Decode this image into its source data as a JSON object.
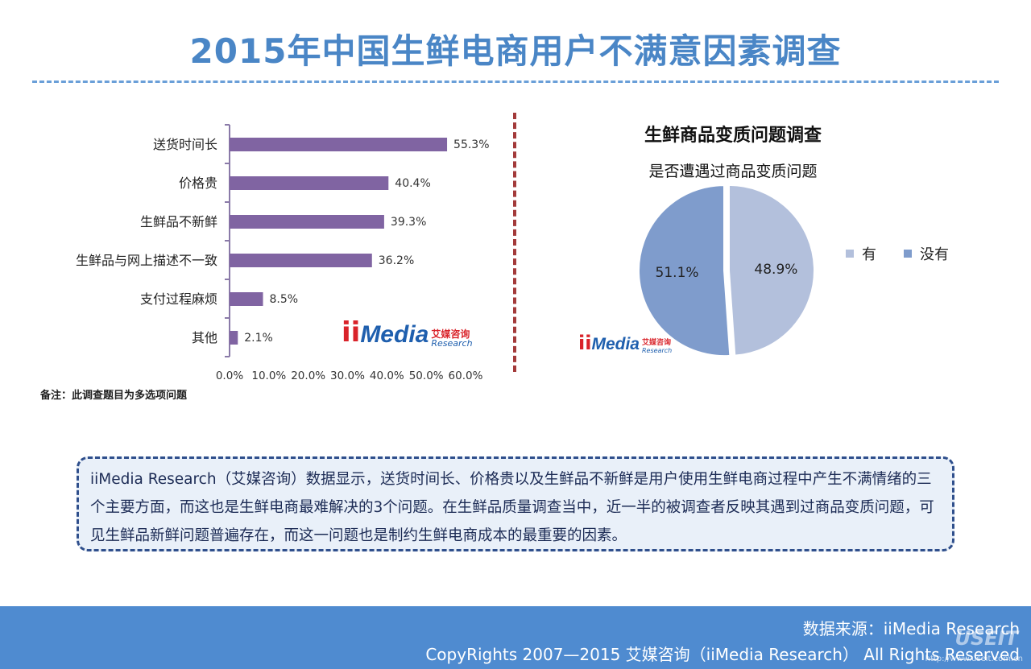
{
  "title": "2015年中国生鲜电商用户不满意因素调查",
  "note": "备注：此调查题目为多选项问题",
  "pie": {
    "title": "生鲜商品变质问题调查",
    "subtitle": "是否遭遇过商品变质问题"
  },
  "logo": {
    "ii": "ii",
    "media": "Media",
    "cn": "艾媒咨询",
    "en": "Research"
  },
  "summary": "iiMedia Research（艾媒咨询）数据显示，送货时间长、价格贵以及生鲜品不新鲜是用户使用生鲜电商过程中产生不满情绪的三个主要方面，而这也是生鲜电商最难解决的3个问题。在生鲜品质量调查当中，近一半的被调查者反映其遇到过商品变质问题，可见生鲜品新鲜问题普遍存在，而这一问题也是制约生鲜电商成本的最重要的因素。",
  "footer": {
    "source": "数据来源：iiMedia Research",
    "copyright": "CopyRights 2007—2015 艾媒咨询（iiMedia Research） All Rights Reserved",
    "watermark": "USEIT",
    "watermark_url": "http://www.useit.com.cn"
  },
  "colors": {
    "bar": "#8064a2",
    "pie_yes": "#b3c0dc",
    "pie_no": "#7f9ccc",
    "accent": "#4a86c6"
  },
  "chart_data": [
    {
      "type": "bar",
      "orientation": "horizontal",
      "categories": [
        "送货时间长",
        "价格贵",
        "生鲜品不新鲜",
        "生鲜品与网上描述不一致",
        "支付过程麻烦",
        "其他"
      ],
      "values": [
        55.3,
        40.4,
        39.3,
        36.2,
        8.5,
        2.1
      ],
      "value_labels": [
        "55.3%",
        "40.4%",
        "39.3%",
        "36.2%",
        "8.5%",
        "2.1%"
      ],
      "xlim": [
        0,
        60
      ],
      "xticks": [
        "0.0%",
        "10.0%",
        "20.0%",
        "30.0%",
        "40.0%",
        "50.0%",
        "60.0%"
      ],
      "grid": false
    },
    {
      "type": "pie",
      "title": "生鲜商品变质问题调查",
      "subtitle": "是否遭遇过商品变质问题",
      "labels": [
        "有",
        "没有"
      ],
      "values": [
        48.9,
        51.1
      ],
      "value_labels": [
        "48.9%",
        "51.1%"
      ],
      "legend": "right"
    }
  ]
}
